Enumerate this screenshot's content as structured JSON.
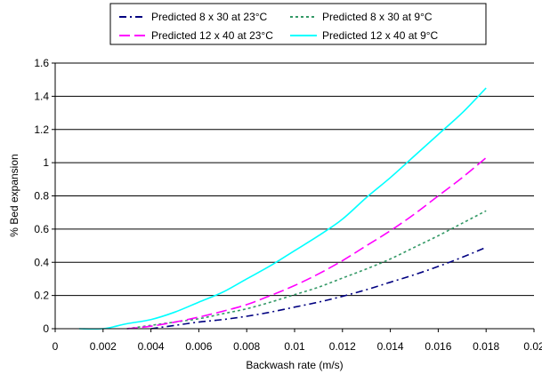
{
  "chart_data": {
    "type": "line",
    "title": "",
    "xlabel": "Backwash rate (m/s)",
    "ylabel": "% Bed expansion",
    "xlim": [
      0,
      0.02
    ],
    "ylim": [
      0,
      1.6
    ],
    "xticks": [
      0,
      0.002,
      0.004,
      0.006,
      0.008,
      0.01,
      0.012,
      0.014,
      0.016,
      0.018,
      0.02
    ],
    "xtick_labels": [
      "0",
      "0.002",
      "0.004",
      "0.006",
      "0.008",
      "0.01",
      "0.012",
      "0.014",
      "0.016",
      "0.018",
      "0.02"
    ],
    "yticks": [
      0,
      0.2,
      0.4,
      0.6,
      0.8,
      1,
      1.2,
      1.4,
      1.6
    ],
    "ytick_labels": [
      "0",
      "0.2",
      "0.4",
      "0.6",
      "0.8",
      "1",
      "1.2",
      "1.4",
      "1.6"
    ],
    "grid": "horizontal",
    "legend_position": "top",
    "series": [
      {
        "name": "Predicted 8 x 30 at 23°C",
        "color": "#000080",
        "dash": "dash-dot",
        "x": [
          0.004,
          0.005,
          0.006,
          0.007,
          0.008,
          0.009,
          0.01,
          0.011,
          0.012,
          0.013,
          0.014,
          0.015,
          0.016,
          0.017,
          0.018
        ],
        "y": [
          0.0,
          0.02,
          0.04,
          0.055,
          0.075,
          0.1,
          0.13,
          0.16,
          0.195,
          0.235,
          0.28,
          0.325,
          0.375,
          0.43,
          0.49
        ]
      },
      {
        "name": "Predicted 8 x 30 at 9°C",
        "color": "#339966",
        "dash": "dotted",
        "x": [
          0.003,
          0.004,
          0.005,
          0.006,
          0.007,
          0.008,
          0.009,
          0.01,
          0.011,
          0.012,
          0.013,
          0.014,
          0.015,
          0.016,
          0.017,
          0.018
        ],
        "y": [
          0.0,
          0.02,
          0.04,
          0.06,
          0.09,
          0.12,
          0.16,
          0.205,
          0.25,
          0.305,
          0.36,
          0.42,
          0.49,
          0.56,
          0.635,
          0.71
        ]
      },
      {
        "name": "Predicted 12 x 40 at 23°C",
        "color": "#FF00FF",
        "dash": "long-dash",
        "x": [
          0.003,
          0.004,
          0.005,
          0.006,
          0.007,
          0.008,
          0.009,
          0.01,
          0.011,
          0.012,
          0.013,
          0.014,
          0.015,
          0.016,
          0.017,
          0.018
        ],
        "y": [
          0.0,
          0.015,
          0.04,
          0.07,
          0.105,
          0.145,
          0.2,
          0.26,
          0.33,
          0.41,
          0.5,
          0.59,
          0.69,
          0.8,
          0.91,
          1.03
        ]
      },
      {
        "name": "Predicted 12 x 40 at 9°C",
        "color": "#00FFFF",
        "dash": "solid",
        "x": [
          0.001,
          0.002,
          0.003,
          0.004,
          0.005,
          0.006,
          0.007,
          0.008,
          0.009,
          0.01,
          0.011,
          0.012,
          0.013,
          0.014,
          0.015,
          0.016,
          0.017,
          0.018
        ],
        "y": [
          0.0,
          0.0,
          0.03,
          0.055,
          0.1,
          0.16,
          0.22,
          0.3,
          0.38,
          0.47,
          0.56,
          0.66,
          0.79,
          0.91,
          1.04,
          1.17,
          1.3,
          1.45
        ]
      }
    ]
  }
}
